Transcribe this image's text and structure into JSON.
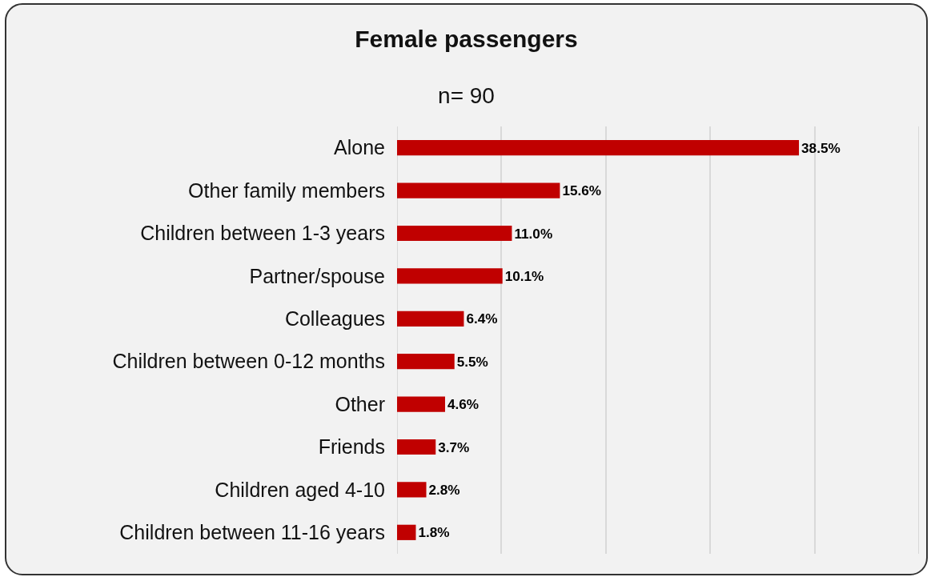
{
  "chart_data": {
    "type": "bar",
    "orientation": "horizontal",
    "title": "Female passengers",
    "subtitle": "n= 90",
    "categories": [
      "Alone",
      "Other family members",
      "Children between 1-3 years",
      "Partner/spouse",
      "Colleagues",
      "Children between 0-12 months",
      "Other",
      "Friends",
      "Children aged 4-10",
      "Children between 11-16 years"
    ],
    "values": [
      38.5,
      15.6,
      11.0,
      10.1,
      6.4,
      5.5,
      4.6,
      3.7,
      2.8,
      1.8
    ],
    "value_labels": [
      "38.5%",
      "15.6%",
      "11.0%",
      "10.1%",
      "6.4%",
      "5.5%",
      "4.6%",
      "3.7%",
      "2.8%",
      "1.8%"
    ],
    "color": "#c00000",
    "xlim": [
      0,
      50
    ],
    "xticks": [
      {
        "value": 0,
        "label": null
      },
      {
        "value": 10,
        "label": null
      },
      {
        "value": 20,
        "label": null
      },
      {
        "value": 30,
        "label": null
      },
      {
        "value": 40,
        "label": null
      },
      {
        "value": 50,
        "label": null
      }
    ],
    "grid": "x",
    "tick_labels": "y",
    "legend": false
  }
}
